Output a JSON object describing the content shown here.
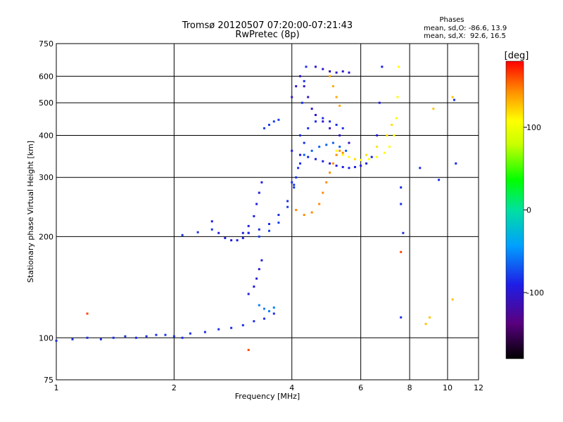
{
  "chart_data": {
    "type": "scatter",
    "title": "Tromsø 20120507 07:20:00-07:21:43",
    "subtitle": "RwPretec (8p)",
    "xlabel": "Frequency [MHz]",
    "ylabel": "Stationary phase Virtual Height [km]",
    "x_scale": "log",
    "y_scale": "log",
    "xlim": [
      1,
      12
    ],
    "ylim": [
      75,
      750
    ],
    "x_ticks": [
      1,
      2,
      4,
      6,
      8,
      10,
      12
    ],
    "y_ticks": [
      75,
      100,
      200,
      300,
      400,
      500,
      600,
      750
    ],
    "x_grid": [
      2,
      4,
      6,
      8,
      10
    ],
    "y_grid": [
      100,
      200,
      300,
      400,
      500,
      600
    ],
    "grid": true,
    "phases_info": {
      "title": "Phases",
      "line1": "mean, sd,O: -86.6, 13.9",
      "line2": "mean, sd,X:  92.6, 16.5"
    },
    "colorbar": {
      "label": "[deg]",
      "range": [
        -180,
        180
      ],
      "ticks": [
        100,
        0,
        -100
      ],
      "placement": "right"
    },
    "series": [
      {
        "segments": [
          {
            "phase": -95,
            "points": [
              [
                1.0,
                98
              ],
              [
                1.1,
                99
              ],
              [
                1.2,
                100
              ],
              [
                1.3,
                99
              ],
              [
                1.4,
                100
              ],
              [
                1.5,
                101
              ],
              [
                1.6,
                100
              ],
              [
                1.7,
                101
              ],
              [
                1.8,
                102
              ],
              [
                1.9,
                102
              ],
              [
                2.0,
                101
              ],
              [
                2.1,
                100
              ],
              [
                2.2,
                103
              ],
              [
                2.4,
                104
              ],
              [
                2.6,
                106
              ],
              [
                2.8,
                107
              ],
              [
                3.0,
                109
              ],
              [
                3.2,
                112
              ],
              [
                3.4,
                114
              ],
              [
                3.6,
                118
              ]
            ]
          },
          {
            "phase": -105,
            "points": [
              [
                3.1,
                135
              ],
              [
                3.2,
                142
              ],
              [
                3.25,
                150
              ],
              [
                3.3,
                160
              ],
              [
                3.35,
                170
              ]
            ]
          },
          {
            "phase": -70,
            "points": [
              [
                3.3,
                125
              ],
              [
                3.4,
                122
              ],
              [
                3.5,
                120
              ],
              [
                3.6,
                123
              ]
            ]
          },
          {
            "phase": -92,
            "points": [
              [
                2.1,
                202
              ],
              [
                2.3,
                206
              ],
              [
                2.5,
                210
              ]
            ]
          },
          {
            "phase": -100,
            "points": [
              [
                2.5,
                222
              ],
              [
                2.6,
                205
              ],
              [
                2.7,
                198
              ],
              [
                2.8,
                195
              ],
              [
                2.9,
                195
              ],
              [
                3.0,
                198
              ],
              [
                3.1,
                205
              ]
            ]
          },
          {
            "phase": -102,
            "points": [
              [
                3.0,
                205
              ],
              [
                3.1,
                215
              ],
              [
                3.2,
                230
              ],
              [
                3.25,
                250
              ],
              [
                3.3,
                270
              ],
              [
                3.35,
                290
              ]
            ]
          },
          {
            "phase": -95,
            "points": [
              [
                3.1,
                205
              ],
              [
                3.3,
                210
              ],
              [
                3.5,
                218
              ],
              [
                3.7,
                232
              ],
              [
                3.9,
                255
              ],
              [
                4.05,
                285
              ],
              [
                4.15,
                320
              ],
              [
                4.2,
                400
              ],
              [
                4.25,
                500
              ],
              [
                4.3,
                580
              ],
              [
                4.35,
                640
              ]
            ]
          },
          {
            "phase": -90,
            "points": [
              [
                3.3,
                200
              ],
              [
                3.5,
                208
              ],
              [
                3.7,
                220
              ],
              [
                3.9,
                245
              ],
              [
                4.05,
                280
              ]
            ]
          },
          {
            "phase": -90,
            "points": [
              [
                3.4,
                420
              ],
              [
                3.5,
                430
              ],
              [
                3.6,
                440
              ],
              [
                3.7,
                445
              ]
            ]
          },
          {
            "phase": -95,
            "points": [
              [
                4.0,
                290
              ],
              [
                4.1,
                300
              ],
              [
                4.2,
                330
              ],
              [
                4.3,
                380
              ],
              [
                4.4,
                420
              ],
              [
                4.6,
                440
              ],
              [
                4.8,
                450
              ],
              [
                5.0,
                440
              ],
              [
                5.2,
                430
              ],
              [
                5.4,
                420
              ]
            ]
          },
          {
            "phase": -80,
            "points": [
              [
                4.3,
                350
              ],
              [
                4.5,
                360
              ],
              [
                4.7,
                370
              ],
              [
                4.9,
                375
              ],
              [
                5.1,
                380
              ],
              [
                5.3,
                370
              ],
              [
                5.5,
                360
              ]
            ]
          },
          {
            "phase": -112,
            "points": [
              [
                4.0,
                520
              ],
              [
                4.1,
                560
              ],
              [
                4.2,
                600
              ],
              [
                4.3,
                560
              ],
              [
                4.4,
                520
              ],
              [
                4.5,
                480
              ],
              [
                4.6,
                460
              ],
              [
                4.8,
                440
              ],
              [
                5.0,
                420
              ],
              [
                5.3,
                400
              ],
              [
                5.6,
                380
              ]
            ]
          },
          {
            "phase": -100,
            "points": [
              [
                4.0,
                360
              ],
              [
                4.2,
                350
              ],
              [
                4.4,
                345
              ],
              [
                4.6,
                340
              ],
              [
                4.8,
                335
              ],
              [
                5.0,
                330
              ],
              [
                5.2,
                325
              ],
              [
                5.4,
                322
              ],
              [
                5.6,
                320
              ],
              [
                5.8,
                322
              ],
              [
                6.0,
                325
              ],
              [
                6.2,
                330
              ],
              [
                6.4,
                345
              ],
              [
                6.6,
                400
              ],
              [
                6.7,
                500
              ],
              [
                6.8,
                640
              ]
            ]
          },
          {
            "phase": -110,
            "points": [
              [
                4.6,
                640
              ],
              [
                4.8,
                630
              ],
              [
                5.0,
                620
              ],
              [
                5.2,
                615
              ],
              [
                5.4,
                620
              ],
              [
                5.6,
                615
              ]
            ]
          },
          {
            "phase": 140,
            "points": [
              [
                4.1,
                240
              ],
              [
                4.3,
                232
              ],
              [
                4.5,
                236
              ],
              [
                4.7,
                250
              ],
              [
                4.8,
                270
              ],
              [
                4.9,
                290
              ],
              [
                5.0,
                310
              ],
              [
                5.1,
                330
              ],
              [
                5.2,
                350
              ],
              [
                5.3,
                360
              ],
              [
                5.4,
                355
              ]
            ]
          },
          {
            "phase": 130,
            "points": [
              [
                5.0,
                600
              ],
              [
                5.1,
                560
              ],
              [
                5.2,
                520
              ],
              [
                5.3,
                490
              ]
            ]
          },
          {
            "phase": 100,
            "points": [
              [
                5.2,
                360
              ],
              [
                5.4,
                350
              ],
              [
                5.6,
                345
              ],
              [
                5.8,
                340
              ],
              [
                6.0,
                338
              ],
              [
                6.3,
                340
              ],
              [
                6.6,
                345
              ],
              [
                6.9,
                355
              ],
              [
                7.1,
                370
              ],
              [
                7.3,
                400
              ],
              [
                7.4,
                450
              ],
              [
                7.45,
                520
              ],
              [
                7.5,
                640
              ]
            ]
          },
          {
            "phase": 110,
            "points": [
              [
                5.8,
                340
              ],
              [
                6.2,
                350
              ],
              [
                6.6,
                370
              ],
              [
                7.0,
                400
              ],
              [
                7.2,
                430
              ]
            ]
          },
          {
            "phase": -95,
            "points": [
              [
                7.6,
                280
              ],
              [
                7.6,
                250
              ],
              [
                8.5,
                320
              ],
              [
                9.5,
                295
              ],
              [
                10.5,
                330
              ],
              [
                10.4,
                510
              ],
              [
                7.6,
                115
              ],
              [
                7.7,
                205
              ]
            ]
          },
          {
            "phase": 120,
            "points": [
              [
                8.8,
                110
              ],
              [
                9.0,
                115
              ],
              [
                9.2,
                480
              ],
              [
                10.3,
                520
              ],
              [
                10.3,
                130
              ]
            ]
          },
          {
            "phase": 160,
            "points": [
              [
                7.6,
                180
              ],
              [
                1.2,
                118
              ],
              [
                3.1,
                92
              ]
            ]
          }
        ]
      }
    ]
  }
}
